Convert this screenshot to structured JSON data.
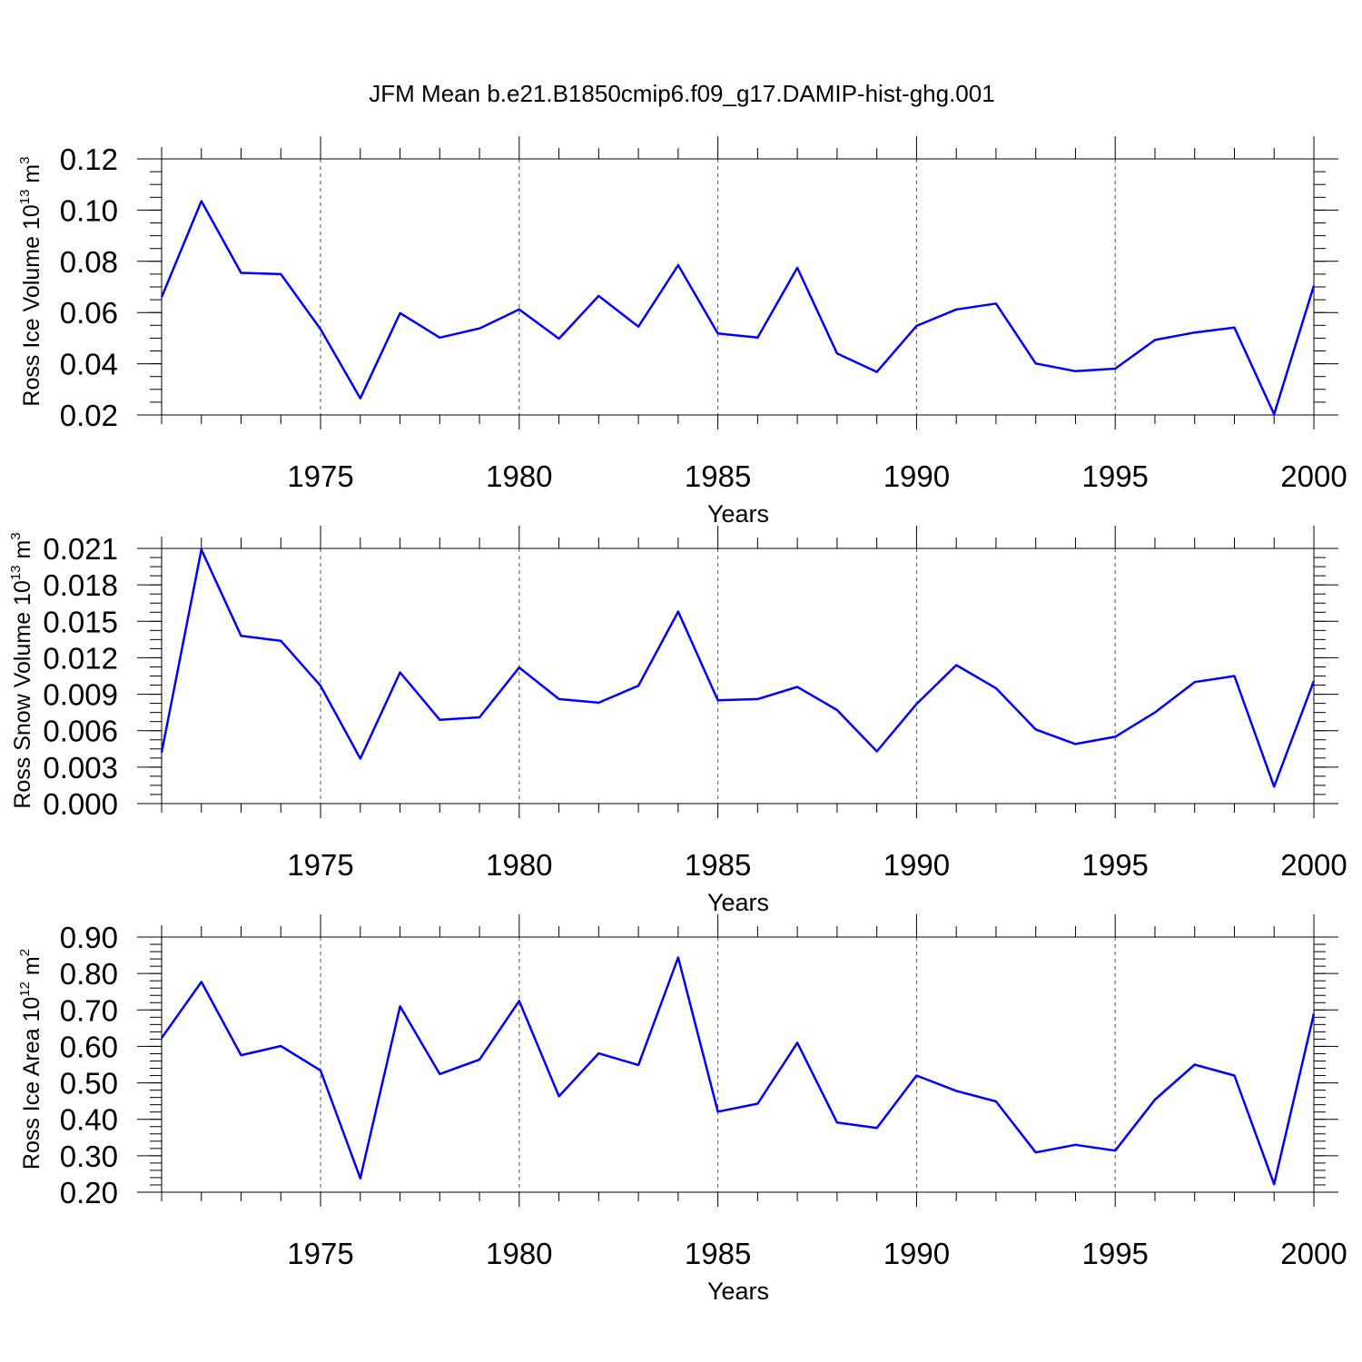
{
  "figure": {
    "title": "JFM Mean b.e21.B1850cmip6.f09_g17.DAMIP-hist-ghg.001",
    "line_color": "#0000ff"
  },
  "chart_data": [
    {
      "type": "line",
      "title": "",
      "xlabel": "Years",
      "ylabel": {
        "main": "Ross Ice Volume 10",
        "exp": "13",
        "unit": " m",
        "unit_exp": "3"
      },
      "xlim": [
        1971,
        2000
      ],
      "ylim": [
        0.02,
        0.12
      ],
      "yticks": [
        "0.02",
        "0.04",
        "0.06",
        "0.08",
        "0.10",
        "0.12"
      ],
      "ytick_values": [
        0.02,
        0.04,
        0.06,
        0.08,
        0.1,
        0.12
      ],
      "yminor_step": 0.005,
      "xticks": [
        "1975",
        "1980",
        "1985",
        "1990",
        "1995",
        "2000"
      ],
      "grid": "vertical dashed at major x ticks",
      "x": [
        1971,
        1972,
        1973,
        1974,
        1975,
        1976,
        1977,
        1978,
        1979,
        1980,
        1981,
        1982,
        1983,
        1984,
        1985,
        1986,
        1987,
        1988,
        1989,
        1990,
        1991,
        1992,
        1993,
        1994,
        1995,
        1996,
        1997,
        1998,
        1999,
        2000
      ],
      "values": [
        0.066,
        0.1035,
        0.0755,
        0.075,
        0.0535,
        0.0265,
        0.0598,
        0.0502,
        0.0538,
        0.0612,
        0.0498,
        0.0665,
        0.0545,
        0.0785,
        0.0518,
        0.0502,
        0.0775,
        0.044,
        0.0368,
        0.0548,
        0.0612,
        0.0635,
        0.0401,
        0.0371,
        0.0381,
        0.0493,
        0.0522,
        0.0541,
        0.0203,
        0.0705
      ]
    },
    {
      "type": "line",
      "title": "",
      "xlabel": "Years",
      "ylabel": {
        "main": "Ross Snow Volume 10",
        "exp": "13",
        "unit": " m",
        "unit_exp": "3"
      },
      "xlim": [
        1971,
        2000
      ],
      "ylim": [
        0.0,
        0.021
      ],
      "yticks": [
        "0.000",
        "0.003",
        "0.006",
        "0.009",
        "0.012",
        "0.015",
        "0.018",
        "0.021"
      ],
      "ytick_values": [
        0.0,
        0.003,
        0.006,
        0.009,
        0.012,
        0.015,
        0.018,
        0.021
      ],
      "yminor_step": 0.00075,
      "xticks": [
        "1975",
        "1980",
        "1985",
        "1990",
        "1995",
        "2000"
      ],
      "grid": "vertical dashed at major x ticks",
      "x": [
        1971,
        1972,
        1973,
        1974,
        1975,
        1976,
        1977,
        1978,
        1979,
        1980,
        1981,
        1982,
        1983,
        1984,
        1985,
        1986,
        1987,
        1988,
        1989,
        1990,
        1991,
        1992,
        1993,
        1994,
        1995,
        1996,
        1997,
        1998,
        1999,
        2000
      ],
      "values": [
        0.0042,
        0.0209,
        0.0138,
        0.0134,
        0.0097,
        0.0037,
        0.0108,
        0.0069,
        0.0071,
        0.0112,
        0.0086,
        0.0083,
        0.0097,
        0.0158,
        0.0085,
        0.0086,
        0.0096,
        0.0077,
        0.0043,
        0.0082,
        0.0114,
        0.0095,
        0.0061,
        0.0049,
        0.0055,
        0.0075,
        0.01,
        0.0105,
        0.0014,
        0.0101
      ]
    },
    {
      "type": "line",
      "title": "",
      "xlabel": "Years",
      "ylabel": {
        "main": "Ross Ice Area 10",
        "exp": "12",
        "unit": " m",
        "unit_exp": "2"
      },
      "xlim": [
        1971,
        2000
      ],
      "ylim": [
        0.2,
        0.9
      ],
      "yticks": [
        "0.20",
        "0.30",
        "0.40",
        "0.50",
        "0.60",
        "0.70",
        "0.80",
        "0.90"
      ],
      "ytick_values": [
        0.2,
        0.3,
        0.4,
        0.5,
        0.6,
        0.7,
        0.8,
        0.9
      ],
      "yminor_step": 0.02,
      "xticks": [
        "1975",
        "1980",
        "1985",
        "1990",
        "1995",
        "2000"
      ],
      "grid": "vertical dashed at major x ticks",
      "x": [
        1971,
        1972,
        1973,
        1974,
        1975,
        1976,
        1977,
        1978,
        1979,
        1980,
        1981,
        1982,
        1983,
        1984,
        1985,
        1986,
        1987,
        1988,
        1989,
        1990,
        1991,
        1992,
        1993,
        1994,
        1995,
        1996,
        1997,
        1998,
        1999,
        2000
      ],
      "values": [
        0.623,
        0.777,
        0.576,
        0.601,
        0.534,
        0.238,
        0.71,
        0.524,
        0.564,
        0.725,
        0.463,
        0.581,
        0.549,
        0.844,
        0.421,
        0.443,
        0.61,
        0.391,
        0.376,
        0.52,
        0.478,
        0.449,
        0.309,
        0.33,
        0.314,
        0.454,
        0.55,
        0.52,
        0.222,
        0.69
      ]
    }
  ]
}
